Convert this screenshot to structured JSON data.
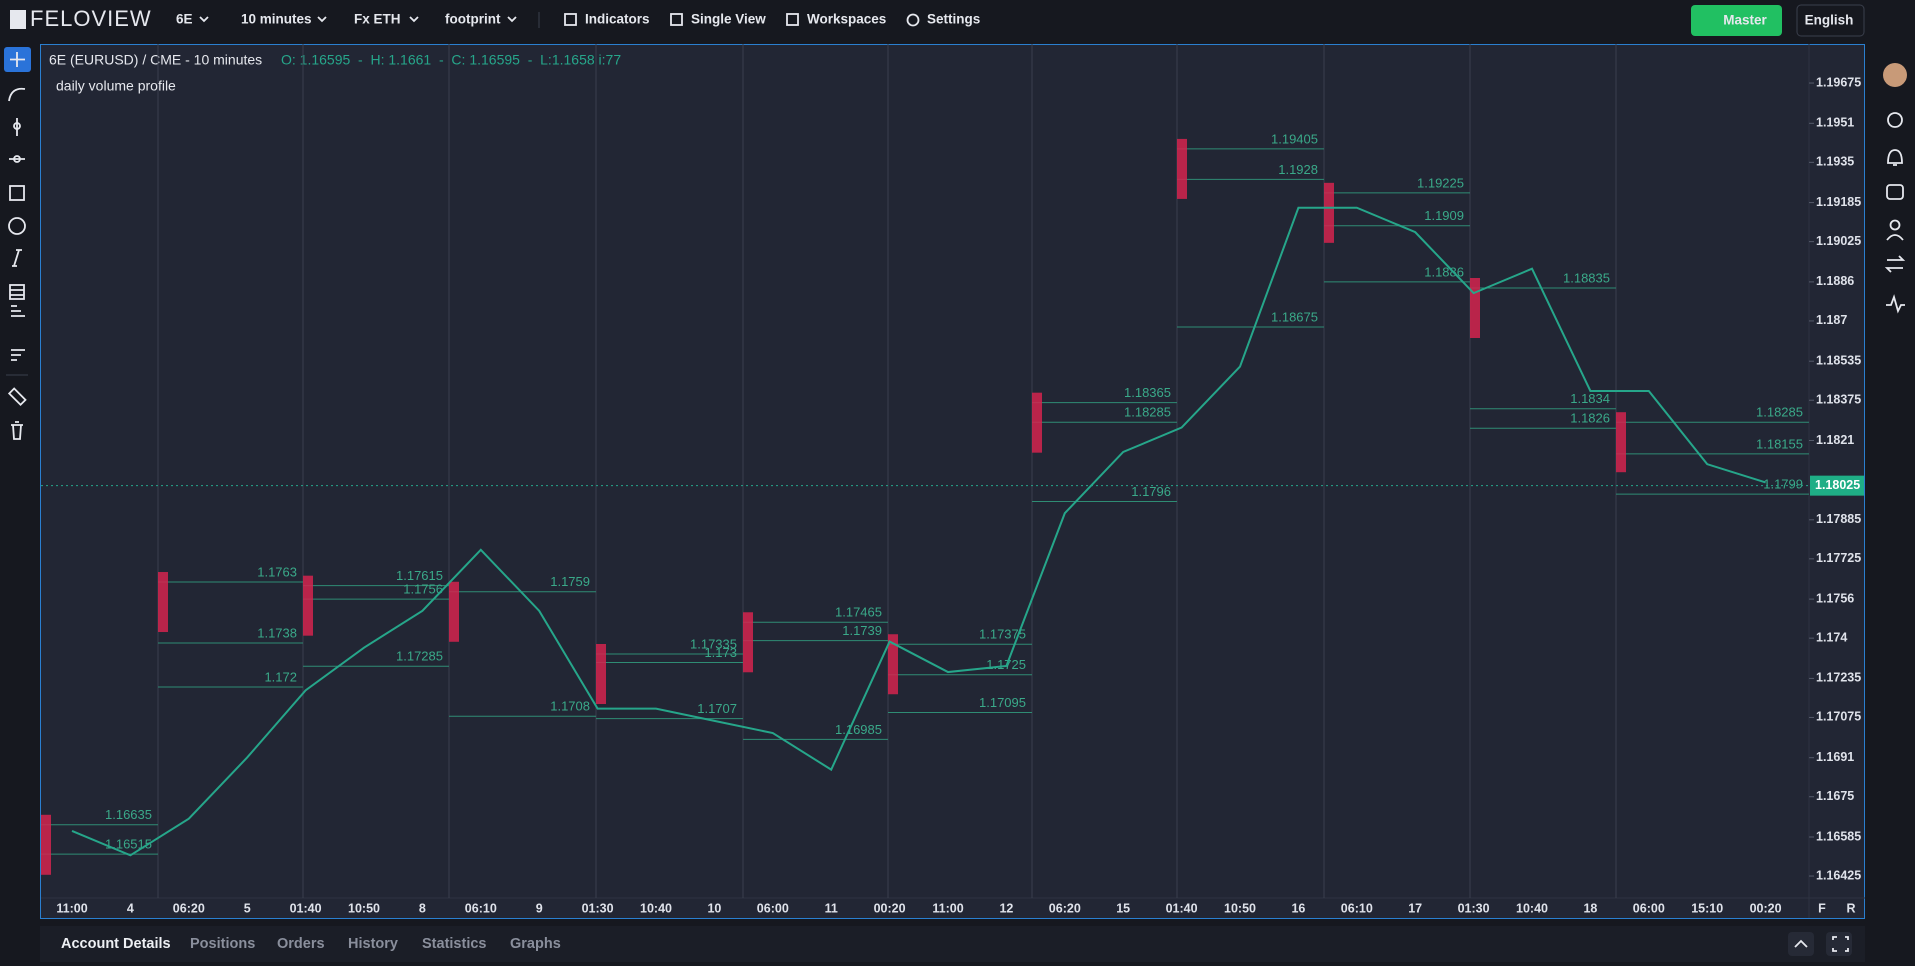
{
  "topbar": {
    "logo": "FELOVIEW",
    "symbol": "6E",
    "interval": "10 minutes",
    "session": "Fx ETH",
    "chart_style": "footprint",
    "menu": [
      "Indicators",
      "Single View",
      "Workspaces",
      "Settings"
    ],
    "account": "Master",
    "language": "English"
  },
  "chart_header": {
    "title": "6E (EURUSD) / CME - 10 minutes",
    "ohlc": "O: 1.16595  -  H: 1.1661  -  C: 1.16595  -  L:1.1658 i:77",
    "indicator": "daily volume profile"
  },
  "chart_data": {
    "type": "line",
    "categories": [
      "11:00",
      "4",
      "06:20",
      "5",
      "01:40",
      "10:50",
      "8",
      "06:10",
      "9",
      "01:30",
      "10:40",
      "10",
      "06:00",
      "11",
      "00:20",
      "11:00",
      "12",
      "06:20",
      "15",
      "01:40",
      "10:50",
      "16",
      "06:10",
      "17",
      "01:30",
      "10:40",
      "18",
      "06:00",
      "15:10",
      "00:20"
    ],
    "series": [
      {
        "name": "6E",
        "color": "#26a68a",
        "values": [
          1.1661,
          1.1651,
          1.1666,
          1.16911,
          1.17186,
          1.17361,
          1.17512,
          1.17762,
          1.17512,
          1.17111,
          1.17111,
          1.17061,
          1.17011,
          1.16861,
          1.17386,
          1.17261,
          1.17286,
          1.17912,
          1.18163,
          1.18263,
          1.18513,
          1.19164,
          1.19164,
          1.19064,
          1.18814,
          1.18914,
          1.18413,
          1.18413,
          1.18113,
          1.18038
        ]
      }
    ],
    "ylim": [
      1.16335,
      1.19835
    ],
    "yticks": [
      1.19675,
      1.1951,
      1.1935,
      1.19185,
      1.19025,
      1.1886,
      1.187,
      1.18535,
      1.18375,
      1.1821,
      1.17885,
      1.17725,
      1.1756,
      1.174,
      1.17235,
      1.17075,
      1.1691,
      1.1675,
      1.16585,
      1.16425
    ],
    "last_price": 1.18025,
    "sessions": [
      {
        "levels": [
          1.16635,
          1.16515
        ]
      },
      {
        "levels": [
          1.1763,
          1.1738,
          1.172
        ]
      },
      {
        "levels": [
          1.17615,
          1.1756,
          1.17285
        ]
      },
      {
        "levels": [
          1.1759,
          1.1708
        ]
      },
      {
        "levels": [
          1.17335,
          1.173,
          1.1707
        ]
      },
      {
        "levels": [
          1.17465,
          1.1739,
          1.16985
        ]
      },
      {
        "levels": [
          1.17375,
          1.1725,
          1.17095
        ]
      },
      {
        "levels": [
          1.18365,
          1.18285,
          1.1796
        ]
      },
      {
        "levels": [
          1.19405,
          1.1928,
          1.18675
        ]
      },
      {
        "levels": [
          1.19225,
          1.1909,
          1.1886
        ]
      },
      {
        "levels": [
          1.18835,
          1.1834,
          1.1826
        ]
      },
      {
        "levels": [
          1.18285,
          1.18155,
          1.1799
        ]
      }
    ],
    "axis_buttons": [
      "F",
      "R"
    ]
  },
  "bottom_tabs": [
    "Account Details",
    "Positions",
    "Orders",
    "History",
    "Statistics",
    "Graphs"
  ]
}
